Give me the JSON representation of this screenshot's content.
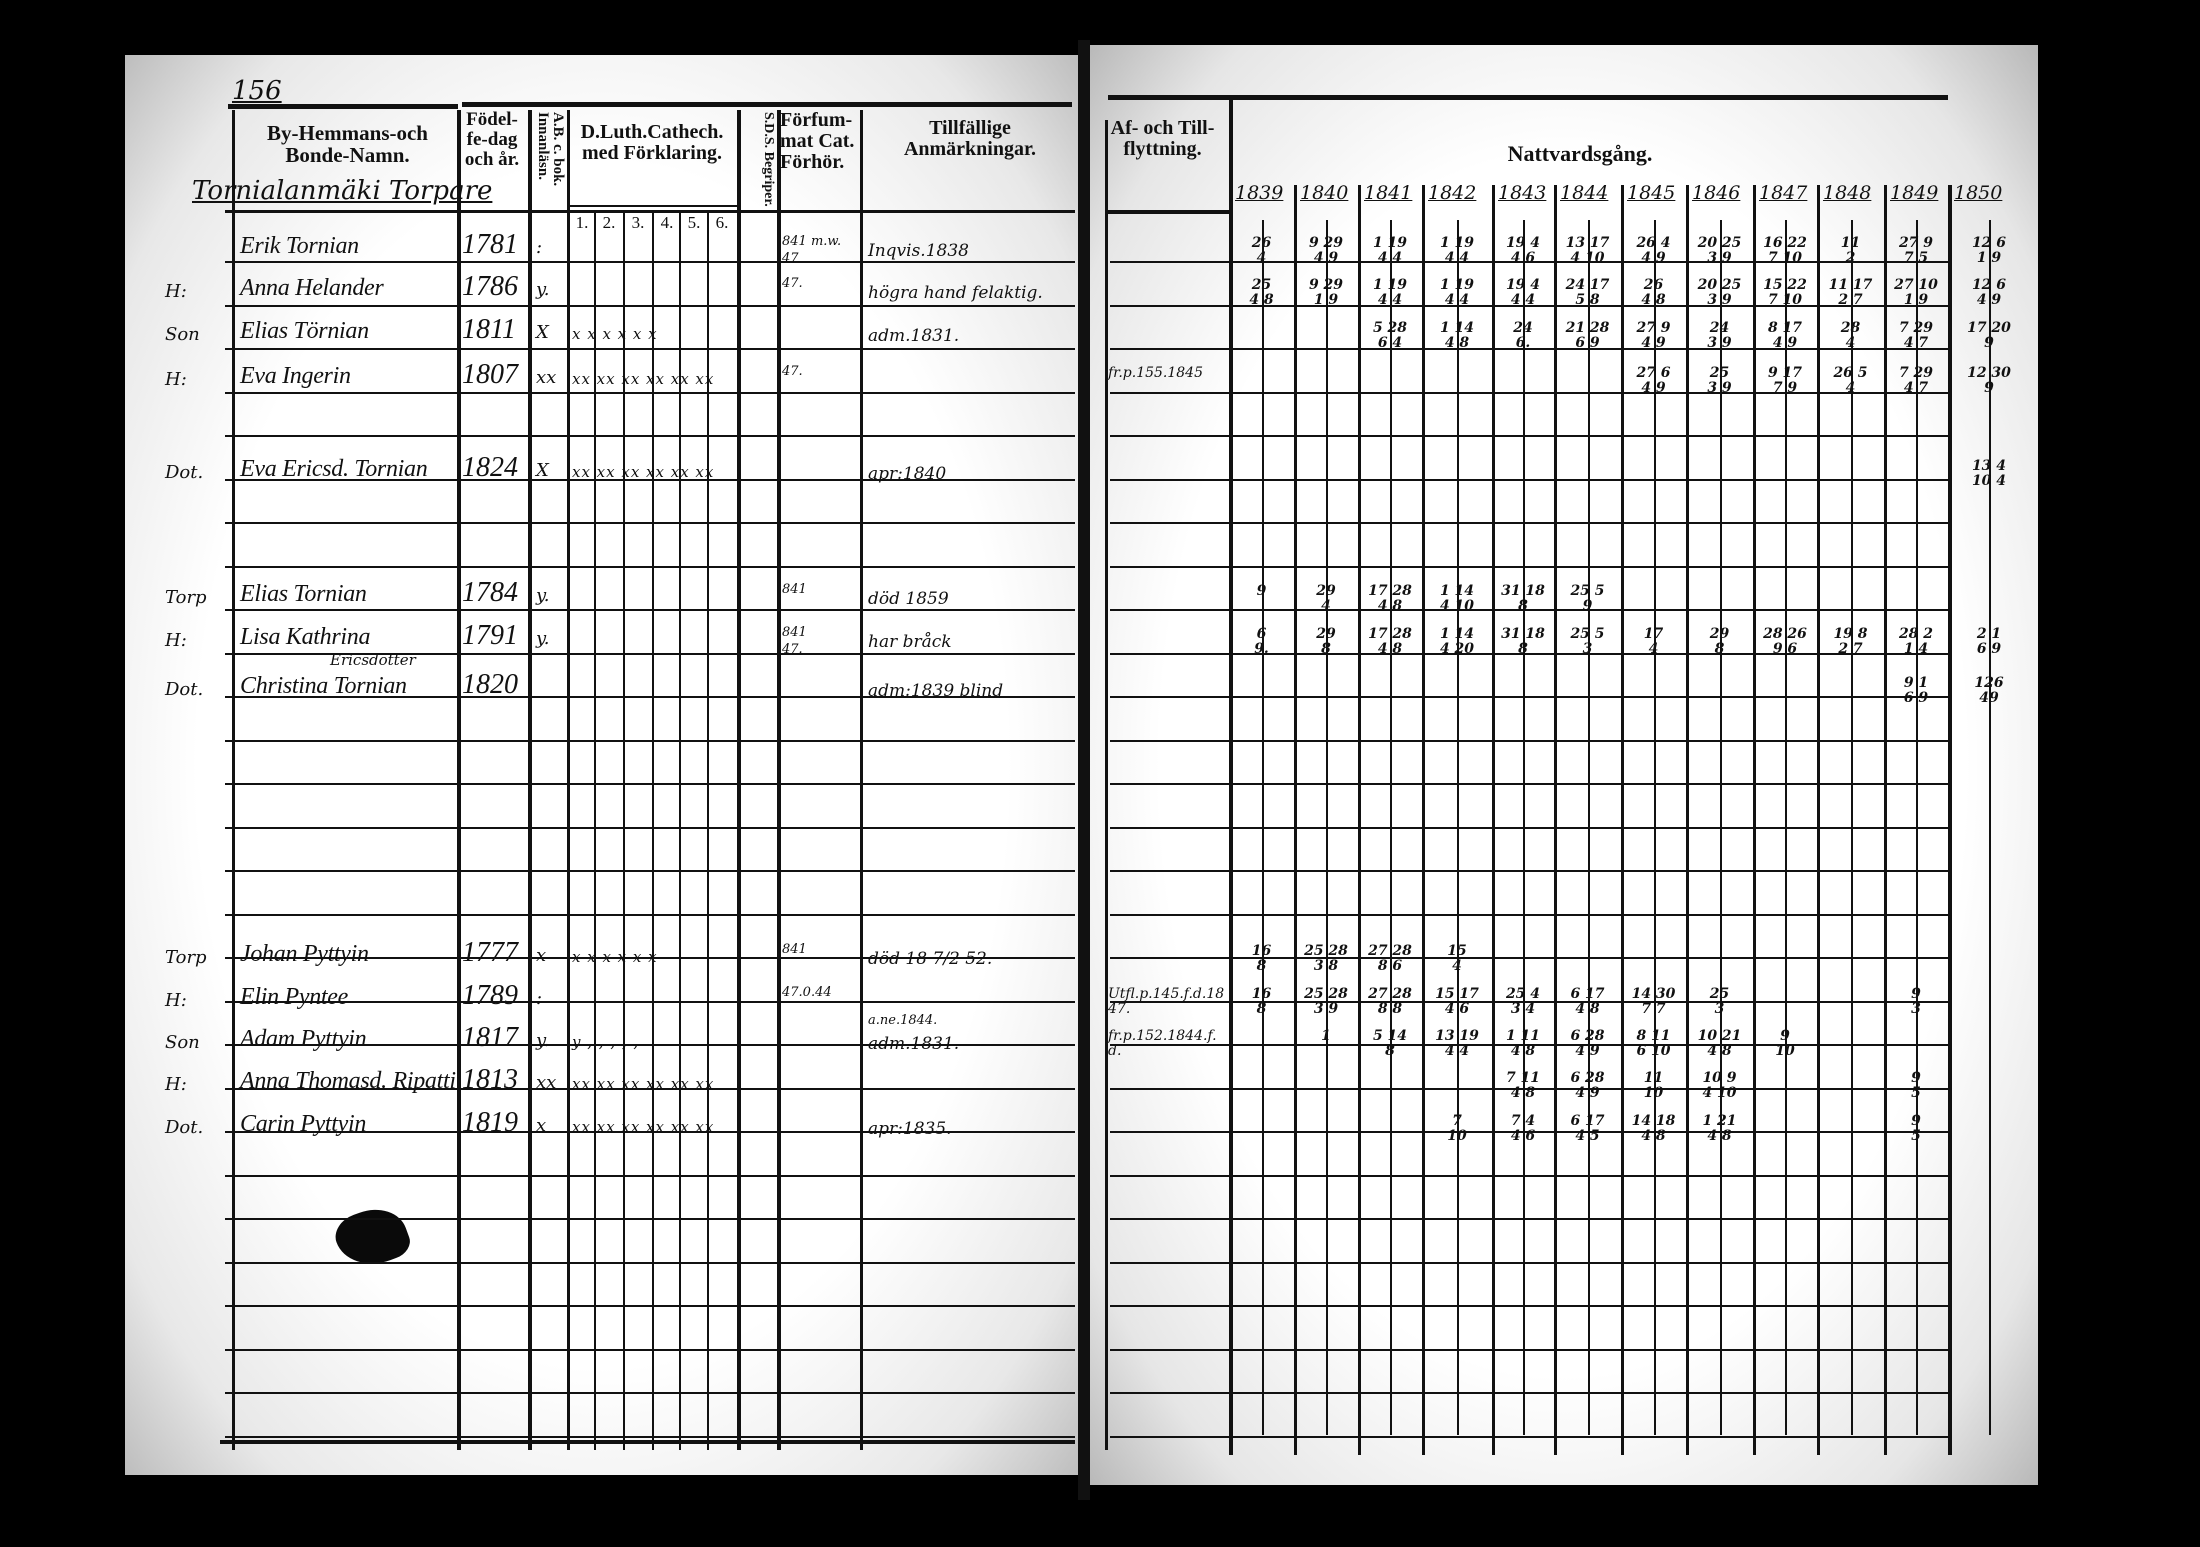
{
  "page_number": "156",
  "left_headers": {
    "name": "By-Hemmans-och Bonde-Namn.",
    "birth": "Födel-fe-dag och år.",
    "ab": "A.B. c. bok. Innanläsn.",
    "catechism": "D.Luth.Cathech. med Förklaring.",
    "catechism_parts": [
      "1.",
      "2.",
      "3.",
      "4.",
      "5.",
      "6."
    ],
    "sds": "S.D.S. Begriper.",
    "missed": "Förfum-mat Cat. Förhör.",
    "notes": "Tillfällige Anmärkningar."
  },
  "right_headers": {
    "migration": "Af- och Till-flyttning.",
    "communion": "Nattvardsgång.",
    "years": [
      "1839",
      "1840",
      "1841",
      "1842",
      "1843",
      "1844",
      "1845",
      "1846",
      "1847",
      "1848",
      "1849",
      "1850"
    ]
  },
  "section_title": "Tornialanmäki Torpare",
  "persons": [
    {
      "role": "",
      "name": "Erik Tornian",
      "birth": "1781",
      "ab": ":",
      "cat": "",
      "missed": "841 m.w.",
      "missed2": "47",
      "note": "Inqvis.1838",
      "communion": [
        "26\n4",
        "9 29\n4 9",
        "1 19\n4 4",
        "1 19\n4 4",
        "19 4\n4 6",
        "13 17\n4 10",
        "26 4\n4 9",
        "20 25\n3 9",
        "16 22\n7 10",
        "11\n2",
        "27 9\n7 5",
        "12 6\n1 9"
      ]
    },
    {
      "role": "H:",
      "name": "Anna Helander",
      "birth": "1786",
      "ab": "y.",
      "cat": "",
      "missed": "47.",
      "note": "högra hand felaktig.",
      "communion": [
        "25\n4 8",
        "9 29\n1 9",
        "1 19\n4 4",
        "1 19\n4 4",
        "19 4\n4 4",
        "24 17\n5 8",
        "26\n4 8",
        "20 25\n3 9",
        "15 22\n7 10",
        "11 17\n2 7",
        "27 10\n1 9",
        "12 6\n4 9"
      ]
    },
    {
      "role": "Son",
      "name": "Elias Törnian",
      "birth": "1811",
      "ab": "X",
      "cat": "x x x x x x",
      "missed": "",
      "note": "adm.1831.",
      "communion": [
        "",
        "",
        "5 28\n6 4",
        "1 14\n4 8",
        "24\n6.",
        "21 28\n6 9",
        "27 9\n4 9",
        "24\n3 9",
        "8 17\n4 9",
        "28\n4",
        "7 29\n4 7",
        "17 20\n9"
      ]
    },
    {
      "role": "H:",
      "name": "Eva Ingerin",
      "birth": "1807",
      "ab": "xx",
      "cat": "xx xx xx xx xx xx",
      "missed": "47.",
      "note": "",
      "migration": "fr.p.155.1845",
      "communion": [
        "",
        "",
        "",
        "",
        "",
        "",
        "27 6\n4 9",
        "25\n3 9",
        "9 17\n7 9",
        "26 5\n4",
        "7 29\n4 7",
        "12 30\n9"
      ]
    },
    {
      "role": "Dot.",
      "name": "Eva Ericsd. Tornian",
      "birth": "1824",
      "ab": "X",
      "cat": "xx xx xx xx xx xx",
      "missed": "",
      "note": "apr:1840",
      "communion": [
        "",
        "",
        "",
        "",
        "",
        "",
        "",
        "",
        "",
        "",
        "",
        "13 4\n10 4"
      ]
    },
    {
      "role": "Torp",
      "name": "Elias Tornian",
      "birth": "1784",
      "ab": "y.",
      "cat": "",
      "missed": "841",
      "note": "död 1859",
      "communion": [
        "9",
        "29\n4",
        "17 28\n4 8",
        "1 14\n4 10",
        "31 18\n8",
        "25 5\n9",
        "",
        "",
        "",
        "",
        "",
        ""
      ]
    },
    {
      "role": "H:",
      "name": "Lisa Kathrina",
      "name_sup": "Ericsdotter",
      "birth": "1791",
      "ab": "y.",
      "cat": "",
      "missed": "841",
      "missed2": "47.",
      "note": "har bråck",
      "communion": [
        "6\n9.",
        "29\n8",
        "17 28\n4 8",
        "1 14\n4 20",
        "31 18\n8",
        "25 5\n3",
        "17\n4",
        "29\n8",
        "28 26\n9 6",
        "19 8\n2 7",
        "28 2\n1 4",
        "2 1\n6 9"
      ]
    },
    {
      "role": "Dot.",
      "name": "Christina Tornian",
      "birth": "1820",
      "ab": "",
      "cat": "",
      "missed": "",
      "note": "adm:1839 blind",
      "communion": [
        "",
        "",
        "",
        "",
        "",
        "",
        "",
        "",
        "",
        "",
        "9 1\n6 9",
        "126\n49"
      ]
    },
    {
      "role": "Torp",
      "name": "Johan Pyttyin",
      "birth": "1777",
      "ab": "x",
      "cat": "x x x x x x",
      "missed": "841",
      "note": "död 18 7/2 52.",
      "communion": [
        "16\n8",
        "25 28\n3 8",
        "27 28\n8 6",
        "15\n4",
        "",
        "",
        "",
        "",
        "",
        "",
        "",
        ""
      ]
    },
    {
      "role": "H:",
      "name": "Elin Pyntee",
      "birth": "1789",
      "ab": ":",
      "cat": "",
      "missed": "47.0.44",
      "note": "",
      "migration": "Utfl.p.145.f.d.1847.",
      "communion": [
        "16\n8",
        "25 28\n3 9",
        "27 28\n8 8",
        "15 17\n4 6",
        "25 4\n3 4",
        "6 17\n4 8",
        "14 30\n7 7",
        "25\n3",
        "",
        "",
        "9\n3",
        ""
      ]
    },
    {
      "role": "Son",
      "name": "Adam Pyttyin",
      "birth": "1817",
      "ab": "y.",
      "cat": "y , , , , ,",
      "missed": "",
      "note": "adm.1831.",
      "note_pre": "a.ne.1844.",
      "migration": "fr.p.152.1844.f.d.",
      "communion": [
        "",
        "1",
        "5 14\n8",
        "13 19\n4 4",
        "1 11\n4 8",
        "6 28\n4 9",
        "8 11\n6 10",
        "10 21\n4 8",
        "9\n10",
        "",
        "",
        ""
      ]
    },
    {
      "role": "H:",
      "name": "Anna Thomasd. Ripatti",
      "birth": "1813",
      "ab": "xx",
      "cat": "xx xx xx xx xx xx",
      "missed": "",
      "note": "",
      "communion": [
        "",
        "",
        "",
        "",
        "7 11\n4 8",
        "6 28\n4 9",
        "11\n10",
        "10 9\n4 10",
        "",
        "",
        "9\n5",
        ""
      ]
    },
    {
      "role": "Dot.",
      "name": "Carin Pyttyin",
      "birth": "1819",
      "ab": "x",
      "cat": "xx xx xx xx xx xx",
      "missed": "",
      "note": "apr:1835.",
      "communion": [
        "",
        "",
        "",
        "7\n10",
        "7 4\n4 6",
        "6 17\n4 5",
        "14 18\n4 8",
        "1 21\n4 8",
        "",
        "",
        "9\n5",
        ""
      ]
    }
  ]
}
